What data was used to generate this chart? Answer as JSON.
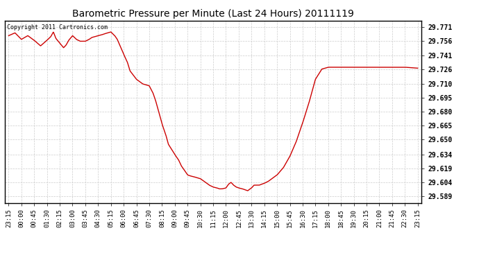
{
  "title": "Barometric Pressure per Minute (Last 24 Hours) 20111119",
  "copyright_text": "Copyright 2011 Cartronics.com",
  "line_color": "#cc0000",
  "bg_color": "#ffffff",
  "plot_bg_color": "#ffffff",
  "grid_color": "#cccccc",
  "yticks": [
    29.589,
    29.604,
    29.619,
    29.634,
    29.65,
    29.665,
    29.68,
    29.695,
    29.71,
    29.726,
    29.741,
    29.756,
    29.771
  ],
  "ylim": [
    29.582,
    29.778
  ],
  "xtick_labels": [
    "23:15",
    "00:00",
    "00:45",
    "01:30",
    "02:15",
    "03:00",
    "03:45",
    "04:30",
    "05:15",
    "06:00",
    "06:45",
    "07:30",
    "08:15",
    "09:00",
    "09:45",
    "10:30",
    "11:15",
    "12:00",
    "12:45",
    "13:30",
    "14:15",
    "15:00",
    "15:45",
    "16:30",
    "17:15",
    "18:00",
    "18:45",
    "19:30",
    "20:15",
    "21:00",
    "21:45",
    "22:30",
    "23:15"
  ],
  "pressure_keypoints": [
    [
      0,
      29.762
    ],
    [
      0.5,
      29.765
    ],
    [
      1,
      29.758
    ],
    [
      1.5,
      29.762
    ],
    [
      2,
      29.757
    ],
    [
      2.5,
      29.751
    ],
    [
      3,
      29.757
    ],
    [
      3.3,
      29.761
    ],
    [
      3.5,
      29.766
    ],
    [
      3.7,
      29.759
    ],
    [
      4,
      29.754
    ],
    [
      4.3,
      29.749
    ],
    [
      4.5,
      29.752
    ],
    [
      4.7,
      29.757
    ],
    [
      5,
      29.762
    ],
    [
      5.3,
      29.758
    ],
    [
      5.6,
      29.756
    ],
    [
      6,
      29.756
    ],
    [
      6.3,
      29.758
    ],
    [
      6.5,
      29.76
    ],
    [
      7,
      29.762
    ],
    [
      7.3,
      29.763
    ],
    [
      7.5,
      29.764
    ],
    [
      8,
      29.766
    ],
    [
      8.3,
      29.762
    ],
    [
      8.5,
      29.758
    ],
    [
      9,
      29.742
    ],
    [
      9.3,
      29.733
    ],
    [
      9.5,
      29.724
    ],
    [
      10,
      29.715
    ],
    [
      10.3,
      29.712
    ],
    [
      10.5,
      29.71
    ],
    [
      11,
      29.708
    ],
    [
      11.3,
      29.7
    ],
    [
      11.5,
      29.692
    ],
    [
      12,
      29.667
    ],
    [
      12.3,
      29.655
    ],
    [
      12.5,
      29.645
    ],
    [
      13,
      29.634
    ],
    [
      13.3,
      29.628
    ],
    [
      13.5,
      29.622
    ],
    [
      14,
      29.612
    ],
    [
      14.2,
      29.611
    ],
    [
      14.5,
      29.61
    ],
    [
      15,
      29.608
    ],
    [
      15.2,
      29.606
    ],
    [
      15.4,
      29.604
    ],
    [
      15.5,
      29.603
    ],
    [
      15.7,
      29.601
    ],
    [
      16,
      29.599
    ],
    [
      16.3,
      29.598
    ],
    [
      16.5,
      29.597
    ],
    [
      16.7,
      29.597
    ],
    [
      17,
      29.598
    ],
    [
      17.2,
      29.602
    ],
    [
      17.4,
      29.604
    ],
    [
      17.6,
      29.601
    ],
    [
      17.8,
      29.599
    ],
    [
      18,
      29.598
    ],
    [
      18.3,
      29.597
    ],
    [
      18.5,
      29.596
    ],
    [
      18.7,
      29.595
    ],
    [
      19,
      29.598
    ],
    [
      19.2,
      29.601
    ],
    [
      19.4,
      29.601
    ],
    [
      19.6,
      29.601
    ],
    [
      20,
      29.603
    ],
    [
      20.3,
      29.605
    ],
    [
      20.5,
      29.607
    ],
    [
      21,
      29.612
    ],
    [
      21.5,
      29.62
    ],
    [
      22,
      29.632
    ],
    [
      22.5,
      29.648
    ],
    [
      23,
      29.668
    ],
    [
      23.5,
      29.69
    ],
    [
      24,
      29.715
    ],
    [
      24.5,
      29.726
    ],
    [
      25,
      29.728
    ],
    [
      26,
      29.728
    ],
    [
      27,
      29.728
    ],
    [
      28,
      29.728
    ],
    [
      29,
      29.728
    ],
    [
      30,
      29.728
    ],
    [
      31,
      29.728
    ],
    [
      32,
      29.727
    ]
  ]
}
